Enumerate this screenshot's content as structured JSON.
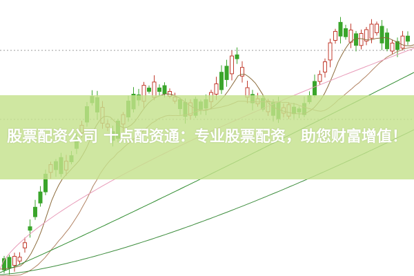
{
  "headline": "股票配资公司 十点配资通：专业股票配资，助您财富增值！",
  "colors": {
    "up": "#c0392b",
    "down": "#3aa52b",
    "banner": "#c4e28c",
    "ma_pink": "#e89ab8",
    "ma_green": "#2e8b2e",
    "ma_brown": "#8b6a3a"
  }
}
